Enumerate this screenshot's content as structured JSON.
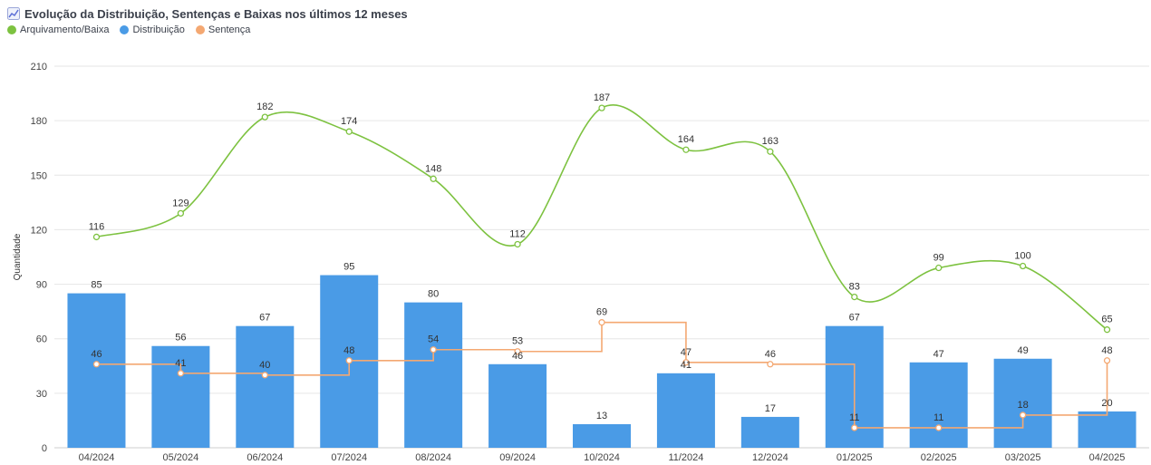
{
  "header": {
    "title": "Evolução da Distribuição, Sentenças e Baixas nos últimos 12 meses",
    "icon": "chart-line-icon"
  },
  "legend": [
    {
      "label": "Arquivamento/Baixa",
      "color": "#7dc240"
    },
    {
      "label": "Distribuição",
      "color": "#4a9be6"
    },
    {
      "label": "Sentença",
      "color": "#f4a872"
    }
  ],
  "chart_data": {
    "type": "bar",
    "categories": [
      "04/2024",
      "05/2024",
      "06/2024",
      "07/2024",
      "08/2024",
      "09/2024",
      "10/2024",
      "11/2024",
      "12/2024",
      "01/2025",
      "02/2025",
      "03/2025",
      "04/2025"
    ],
    "ylabel": "Quantidade",
    "ylim": [
      0,
      210
    ],
    "yticks": [
      0,
      30,
      60,
      90,
      120,
      150,
      180,
      210
    ],
    "grid": true,
    "legend_position": "top-left",
    "series": [
      {
        "name": "Distribuição",
        "type": "bar",
        "color": "#4a9be6",
        "values": [
          85,
          56,
          67,
          95,
          80,
          46,
          13,
          41,
          17,
          67,
          47,
          49,
          20
        ]
      },
      {
        "name": "Arquivamento/Baixa",
        "type": "line-smooth",
        "color": "#7dc240",
        "values": [
          116,
          129,
          182,
          174,
          148,
          112,
          187,
          164,
          163,
          83,
          99,
          100,
          65
        ]
      },
      {
        "name": "Sentença",
        "type": "line-step",
        "color": "#f4a872",
        "values": [
          46,
          41,
          40,
          48,
          54,
          53,
          69,
          47,
          46,
          11,
          11,
          18,
          48
        ]
      }
    ]
  }
}
